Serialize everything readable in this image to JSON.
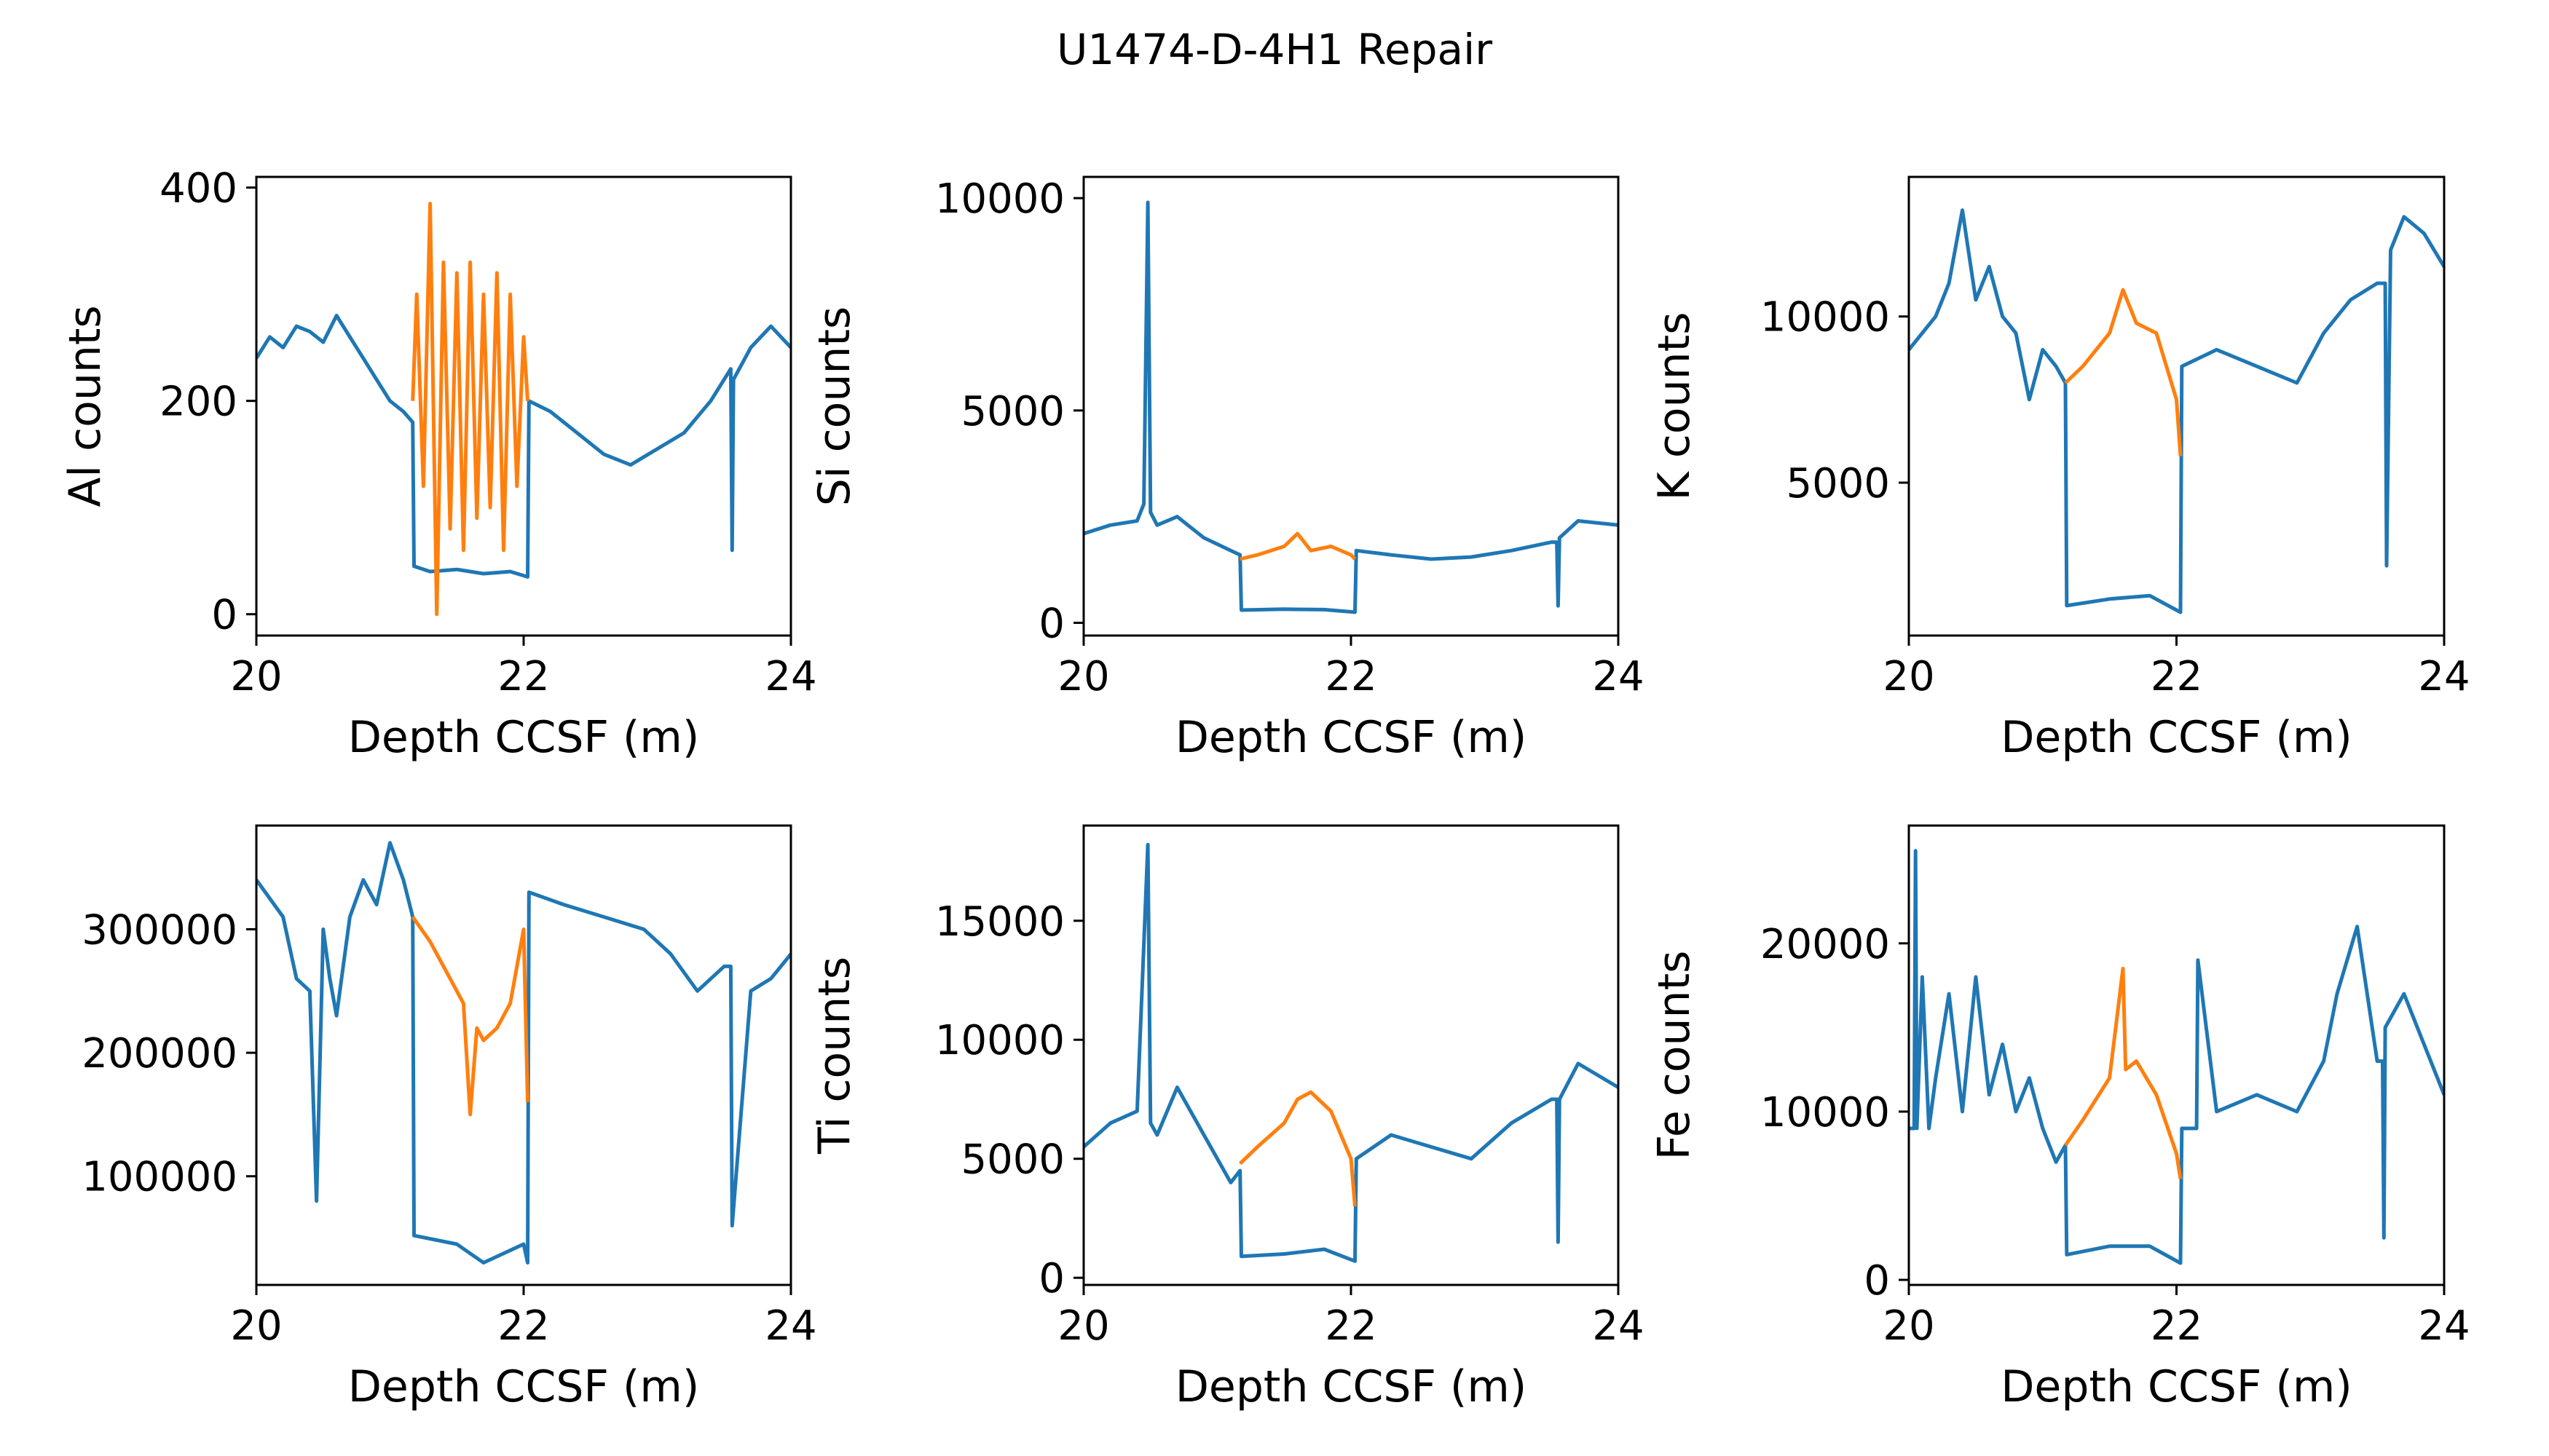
{
  "figure": {
    "title": "U1474-D-4H1 Repair"
  },
  "colors": {
    "original": "#1f77b4",
    "repaired": "#ff7f0e"
  },
  "chart_data": [
    {
      "type": "line",
      "xlabel": "Depth CCSF (m)",
      "ylabel": "Al counts",
      "xlim": [
        20,
        24
      ],
      "ylim": [
        -20,
        410
      ],
      "xticks": [
        20,
        22,
        24
      ],
      "yticks": [
        0,
        200,
        400
      ],
      "series": [
        {
          "color": "#1f77b4",
          "x": [
            20.0,
            20.1,
            20.2,
            20.3,
            20.4,
            20.5,
            20.6,
            20.7,
            20.8,
            20.9,
            21.0,
            21.1,
            21.17,
            21.18,
            21.3,
            21.5,
            21.7,
            21.9,
            22.03,
            22.04,
            22.2,
            22.4,
            22.6,
            22.8,
            23.0,
            23.2,
            23.4,
            23.55,
            23.56,
            23.57,
            23.7,
            23.85,
            24.0
          ],
          "y": [
            240,
            260,
            250,
            270,
            265,
            255,
            280,
            260,
            240,
            220,
            200,
            190,
            180,
            45,
            40,
            42,
            38,
            40,
            35,
            200,
            190,
            170,
            150,
            140,
            155,
            170,
            200,
            230,
            60,
            220,
            250,
            270,
            250
          ]
        },
        {
          "color": "#ff7f0e",
          "x": [
            21.17,
            21.2,
            21.25,
            21.3,
            21.35,
            21.4,
            21.45,
            21.5,
            21.55,
            21.6,
            21.65,
            21.7,
            21.75,
            21.8,
            21.85,
            21.9,
            21.95,
            22.0,
            22.03
          ],
          "y": [
            200,
            300,
            120,
            385,
            0,
            330,
            80,
            320,
            60,
            330,
            90,
            300,
            100,
            320,
            60,
            300,
            120,
            260,
            200
          ]
        }
      ]
    },
    {
      "type": "line",
      "xlabel": "Depth CCSF (m)",
      "ylabel": "Si counts",
      "xlim": [
        20,
        24
      ],
      "ylim": [
        -300,
        10500
      ],
      "xticks": [
        20,
        22,
        24
      ],
      "yticks": [
        0,
        5000,
        10000
      ],
      "series": [
        {
          "color": "#1f77b4",
          "x": [
            20.0,
            20.2,
            20.4,
            20.45,
            20.48,
            20.5,
            20.55,
            20.7,
            20.9,
            21.1,
            21.17,
            21.18,
            21.5,
            21.8,
            22.03,
            22.04,
            22.3,
            22.6,
            22.9,
            23.2,
            23.5,
            23.54,
            23.55,
            23.56,
            23.7,
            24.0
          ],
          "y": [
            2100,
            2300,
            2400,
            2800,
            9900,
            2600,
            2300,
            2500,
            2000,
            1700,
            1600,
            300,
            320,
            310,
            250,
            1700,
            1600,
            1500,
            1550,
            1700,
            1900,
            1900,
            400,
            2000,
            2400,
            2300
          ]
        },
        {
          "color": "#ff7f0e",
          "x": [
            21.17,
            21.3,
            21.5,
            21.6,
            21.7,
            21.85,
            22.0,
            22.03
          ],
          "y": [
            1500,
            1600,
            1800,
            2100,
            1700,
            1800,
            1600,
            1500
          ]
        }
      ]
    },
    {
      "type": "line",
      "xlabel": "Depth CCSF (m)",
      "ylabel": "K counts",
      "xlim": [
        20,
        24
      ],
      "ylim": [
        400,
        14200
      ],
      "xticks": [
        20,
        22,
        24
      ],
      "yticks": [
        5000,
        10000
      ],
      "series": [
        {
          "color": "#1f77b4",
          "x": [
            20.0,
            20.2,
            20.3,
            20.4,
            20.5,
            20.6,
            20.7,
            20.8,
            20.9,
            21.0,
            21.1,
            21.17,
            21.18,
            21.5,
            21.8,
            22.03,
            22.04,
            22.3,
            22.6,
            22.9,
            23.1,
            23.3,
            23.5,
            23.56,
            23.57,
            23.6,
            23.7,
            23.85,
            24.0
          ],
          "y": [
            9000,
            10000,
            11000,
            13200,
            10500,
            11500,
            10000,
            9500,
            7500,
            9000,
            8500,
            8000,
            1300,
            1500,
            1600,
            1100,
            8500,
            9000,
            8500,
            8000,
            9500,
            10500,
            11000,
            11000,
            2500,
            12000,
            13000,
            12500,
            11500
          ]
        },
        {
          "color": "#ff7f0e",
          "x": [
            21.17,
            21.3,
            21.5,
            21.6,
            21.7,
            21.85,
            22.0,
            22.03
          ],
          "y": [
            8000,
            8500,
            9500,
            10800,
            9800,
            9500,
            7500,
            5800
          ]
        }
      ]
    },
    {
      "type": "line",
      "xlabel": "Depth CCSF (m)",
      "ylabel": "",
      "xlim": [
        20,
        24
      ],
      "ylim": [
        12000,
        384000
      ],
      "xticks": [
        20,
        22,
        24
      ],
      "yticks": [
        100000,
        200000,
        300000
      ],
      "series": [
        {
          "color": "#1f77b4",
          "x": [
            20.0,
            20.2,
            20.3,
            20.4,
            20.45,
            20.5,
            20.55,
            20.6,
            20.7,
            20.8,
            20.9,
            21.0,
            21.1,
            21.17,
            21.18,
            21.5,
            21.7,
            22.0,
            22.03,
            22.04,
            22.3,
            22.6,
            22.9,
            23.1,
            23.3,
            23.5,
            23.55,
            23.56,
            23.7,
            23.85,
            24.0
          ],
          "y": [
            340000,
            310000,
            260000,
            250000,
            80000,
            300000,
            260000,
            230000,
            310000,
            340000,
            320000,
            370000,
            340000,
            310000,
            52000,
            45000,
            30000,
            45000,
            30000,
            330000,
            320000,
            310000,
            300000,
            280000,
            250000,
            270000,
            270000,
            60000,
            250000,
            260000,
            280000
          ]
        },
        {
          "color": "#ff7f0e",
          "x": [
            21.17,
            21.3,
            21.45,
            21.55,
            21.6,
            21.65,
            21.7,
            21.8,
            21.9,
            22.0,
            22.03
          ],
          "y": [
            310000,
            290000,
            260000,
            240000,
            150000,
            220000,
            210000,
            220000,
            240000,
            300000,
            160000
          ]
        }
      ]
    },
    {
      "type": "line",
      "xlabel": "Depth CCSF (m)",
      "ylabel": "Ti counts",
      "xlim": [
        20,
        24
      ],
      "ylim": [
        -300,
        19000
      ],
      "xticks": [
        20,
        22,
        24
      ],
      "yticks": [
        0,
        5000,
        10000,
        15000
      ],
      "series": [
        {
          "color": "#1f77b4",
          "x": [
            20.0,
            20.2,
            20.4,
            20.45,
            20.48,
            20.5,
            20.55,
            20.7,
            20.9,
            21.1,
            21.17,
            21.18,
            21.5,
            21.8,
            22.03,
            22.04,
            22.3,
            22.6,
            22.9,
            23.2,
            23.5,
            23.54,
            23.55,
            23.56,
            23.7,
            24.0
          ],
          "y": [
            5500,
            6500,
            7000,
            14000,
            18200,
            6500,
            6000,
            8000,
            6000,
            4000,
            4500,
            900,
            1000,
            1200,
            700,
            5000,
            6000,
            5500,
            5000,
            6500,
            7500,
            7500,
            1500,
            7500,
            9000,
            8000
          ]
        },
        {
          "color": "#ff7f0e",
          "x": [
            21.17,
            21.3,
            21.5,
            21.6,
            21.7,
            21.85,
            22.0,
            22.03
          ],
          "y": [
            4800,
            5500,
            6500,
            7500,
            7800,
            7000,
            5000,
            3000
          ]
        }
      ]
    },
    {
      "type": "line",
      "xlabel": "Depth CCSF (m)",
      "ylabel": "Fe counts",
      "xlim": [
        20,
        24
      ],
      "ylim": [
        -300,
        27000
      ],
      "xticks": [
        20,
        22,
        24
      ],
      "yticks": [
        0,
        10000,
        20000
      ],
      "series": [
        {
          "color": "#1f77b4",
          "x": [
            20.0,
            20.04,
            20.05,
            20.06,
            20.1,
            20.15,
            20.2,
            20.3,
            20.4,
            20.5,
            20.6,
            20.7,
            20.8,
            20.9,
            21.0,
            21.1,
            21.17,
            21.18,
            21.5,
            21.8,
            22.03,
            22.04,
            22.15,
            22.16,
            22.3,
            22.6,
            22.9,
            23.1,
            23.2,
            23.35,
            23.5,
            23.54,
            23.55,
            23.56,
            23.7,
            23.85,
            24.0
          ],
          "y": [
            9000,
            9000,
            25500,
            9000,
            18000,
            9000,
            12000,
            17000,
            10000,
            18000,
            11000,
            14000,
            10000,
            12000,
            9000,
            7000,
            8000,
            1500,
            2000,
            2000,
            1000,
            9000,
            9000,
            19000,
            10000,
            11000,
            10000,
            13000,
            17000,
            21000,
            13000,
            13000,
            2500,
            15000,
            17000,
            14000,
            11000
          ]
        },
        {
          "color": "#ff7f0e",
          "x": [
            21.17,
            21.3,
            21.5,
            21.6,
            21.62,
            21.7,
            21.85,
            22.0,
            22.03
          ],
          "y": [
            8000,
            9500,
            12000,
            18500,
            12500,
            13000,
            11000,
            7500,
            6000
          ]
        }
      ]
    }
  ]
}
